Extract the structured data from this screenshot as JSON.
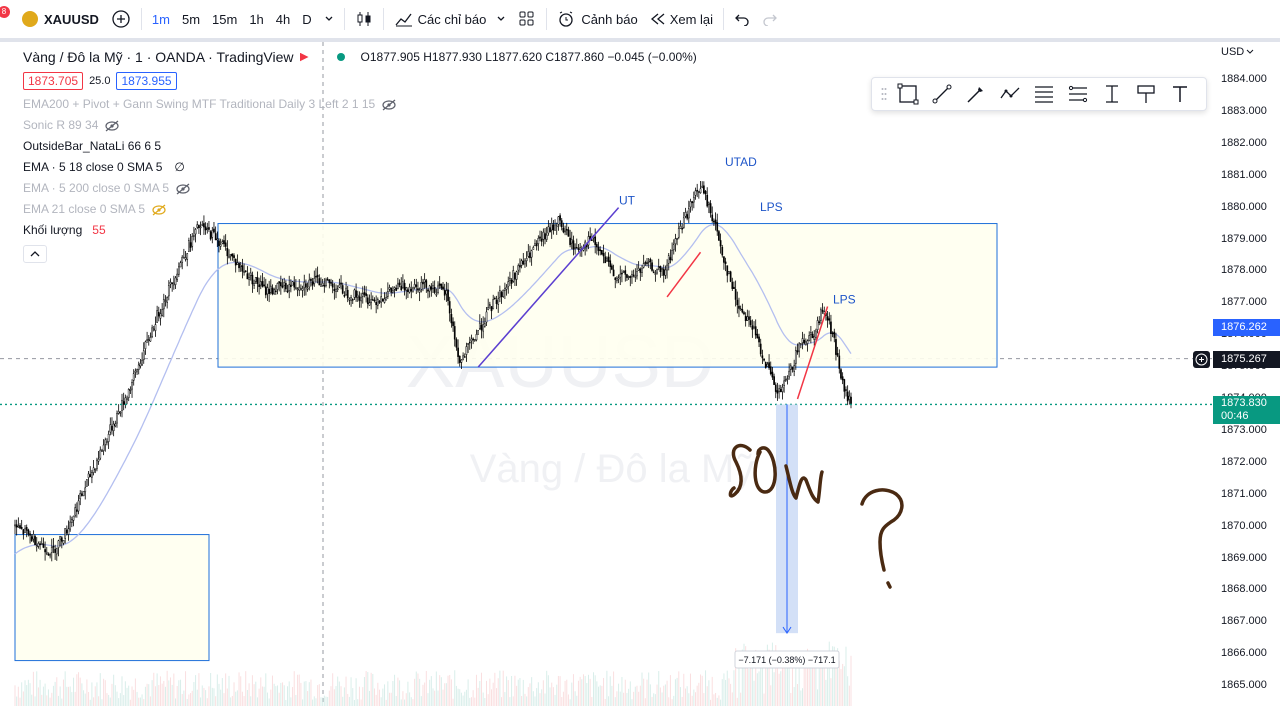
{
  "topbar": {
    "notification_count": "8",
    "symbol": "XAUUSD",
    "timeframes": [
      "1m",
      "5m",
      "15m",
      "1h",
      "4h",
      "D"
    ],
    "active_timeframe": "1m",
    "indicators_label": "Các chỉ báo",
    "alert_label": "Cảnh báo",
    "replay_label": "Xem lại"
  },
  "legend": {
    "title": "Vàng / Đô la Mỹ · 1 · OANDA · TradingView",
    "ohlc": "O1877.905  H1877.930  L1877.620  C1877.860  −0.045 (−0.00%)",
    "bid": "1873.705",
    "spread": "25.0",
    "ask": "1873.955",
    "indicators": [
      {
        "label": "EMA200 + Pivot + Gann Swing MTF Traditional Daily 3 Left 2 1 15",
        "style": "faded"
      },
      {
        "label": "Sonic R 89 34",
        "style": "faded"
      },
      {
        "label": "OutsideBar_NataLi 66 6 5",
        "style": "dark"
      },
      {
        "label": "EMA · 5 18 close 0 SMA 5",
        "style": "dark",
        "suffix": "∅"
      },
      {
        "label": "EMA · 5 200 close 0 SMA 5",
        "style": "faded"
      },
      {
        "label": "EMA 21 close 0 SMA 5",
        "style": "faded"
      },
      {
        "label": "Khối lượng",
        "style": "dark",
        "suffix": "55"
      }
    ]
  },
  "watermark": {
    "symbol": "XAUUSD",
    "name": "Vàng / Đô la Mỹ"
  },
  "annotations": {
    "ut": "UT",
    "utad": "UTAD",
    "lps1": "LPS",
    "lps2": "LPS",
    "measure": "−7.171 (−0.38%) −717.1"
  },
  "price_scale": {
    "currency": "USD",
    "ticks": [
      "1884.000",
      "1883.000",
      "1882.000",
      "1881.000",
      "1880.000",
      "1879.000",
      "1878.000",
      "1877.000",
      "1876.000",
      "1875.000",
      "1874.000",
      "1873.000",
      "1872.000",
      "1871.000",
      "1870.000",
      "1869.000",
      "1868.000",
      "1867.000",
      "1866.000",
      "1865.000"
    ],
    "label_blue": "1876.262",
    "label_dark": "1875.267",
    "label_green": "1873.830",
    "countdown": "00:46"
  },
  "colors": {
    "bull": "#000000",
    "accent_blue": "#2962ff",
    "green": "#089981",
    "red": "#f23645",
    "box": "#1e6fd9",
    "ema": "#b4bff0",
    "ink": "#4a2a12"
  },
  "chart_data": {
    "type": "candlestick",
    "symbol": "XAUUSD",
    "timeframe": "1m",
    "y_range": [
      1864.7,
      1884.2
    ],
    "last_price": 1873.83,
    "close_path": [
      [
        0,
        1870.0
      ],
      [
        12,
        1869.6
      ],
      [
        22,
        1869.2
      ],
      [
        30,
        1869.8
      ],
      [
        40,
        1871.0
      ],
      [
        55,
        1872.8
      ],
      [
        70,
        1874.5
      ],
      [
        85,
        1876.6
      ],
      [
        100,
        1878.4
      ],
      [
        110,
        1879.4
      ],
      [
        120,
        1879.1
      ],
      [
        135,
        1878.1
      ],
      [
        150,
        1877.4
      ],
      [
        170,
        1877.6
      ],
      [
        185,
        1877.7
      ],
      [
        200,
        1877.3
      ],
      [
        215,
        1877.1
      ],
      [
        230,
        1877.5
      ],
      [
        245,
        1877.6
      ],
      [
        258,
        1877.3
      ],
      [
        262,
        1876.2
      ],
      [
        266,
        1875.1
      ],
      [
        285,
        1876.9
      ],
      [
        300,
        1878.0
      ],
      [
        315,
        1879.0
      ],
      [
        325,
        1879.6
      ],
      [
        335,
        1878.7
      ],
      [
        345,
        1879.0
      ],
      [
        358,
        1877.9
      ],
      [
        368,
        1877.8
      ],
      [
        378,
        1878.2
      ],
      [
        388,
        1877.9
      ],
      [
        398,
        1879.4
      ],
      [
        410,
        1880.7
      ],
      [
        418,
        1879.6
      ],
      [
        425,
        1878.2
      ],
      [
        432,
        1877.0
      ],
      [
        440,
        1876.4
      ],
      [
        450,
        1875.0
      ],
      [
        456,
        1874.1
      ],
      [
        462,
        1874.6
      ],
      [
        470,
        1875.8
      ],
      [
        478,
        1876.1
      ],
      [
        484,
        1876.9
      ],
      [
        490,
        1875.8
      ],
      [
        496,
        1874.2
      ],
      [
        500,
        1873.9
      ]
    ]
  }
}
